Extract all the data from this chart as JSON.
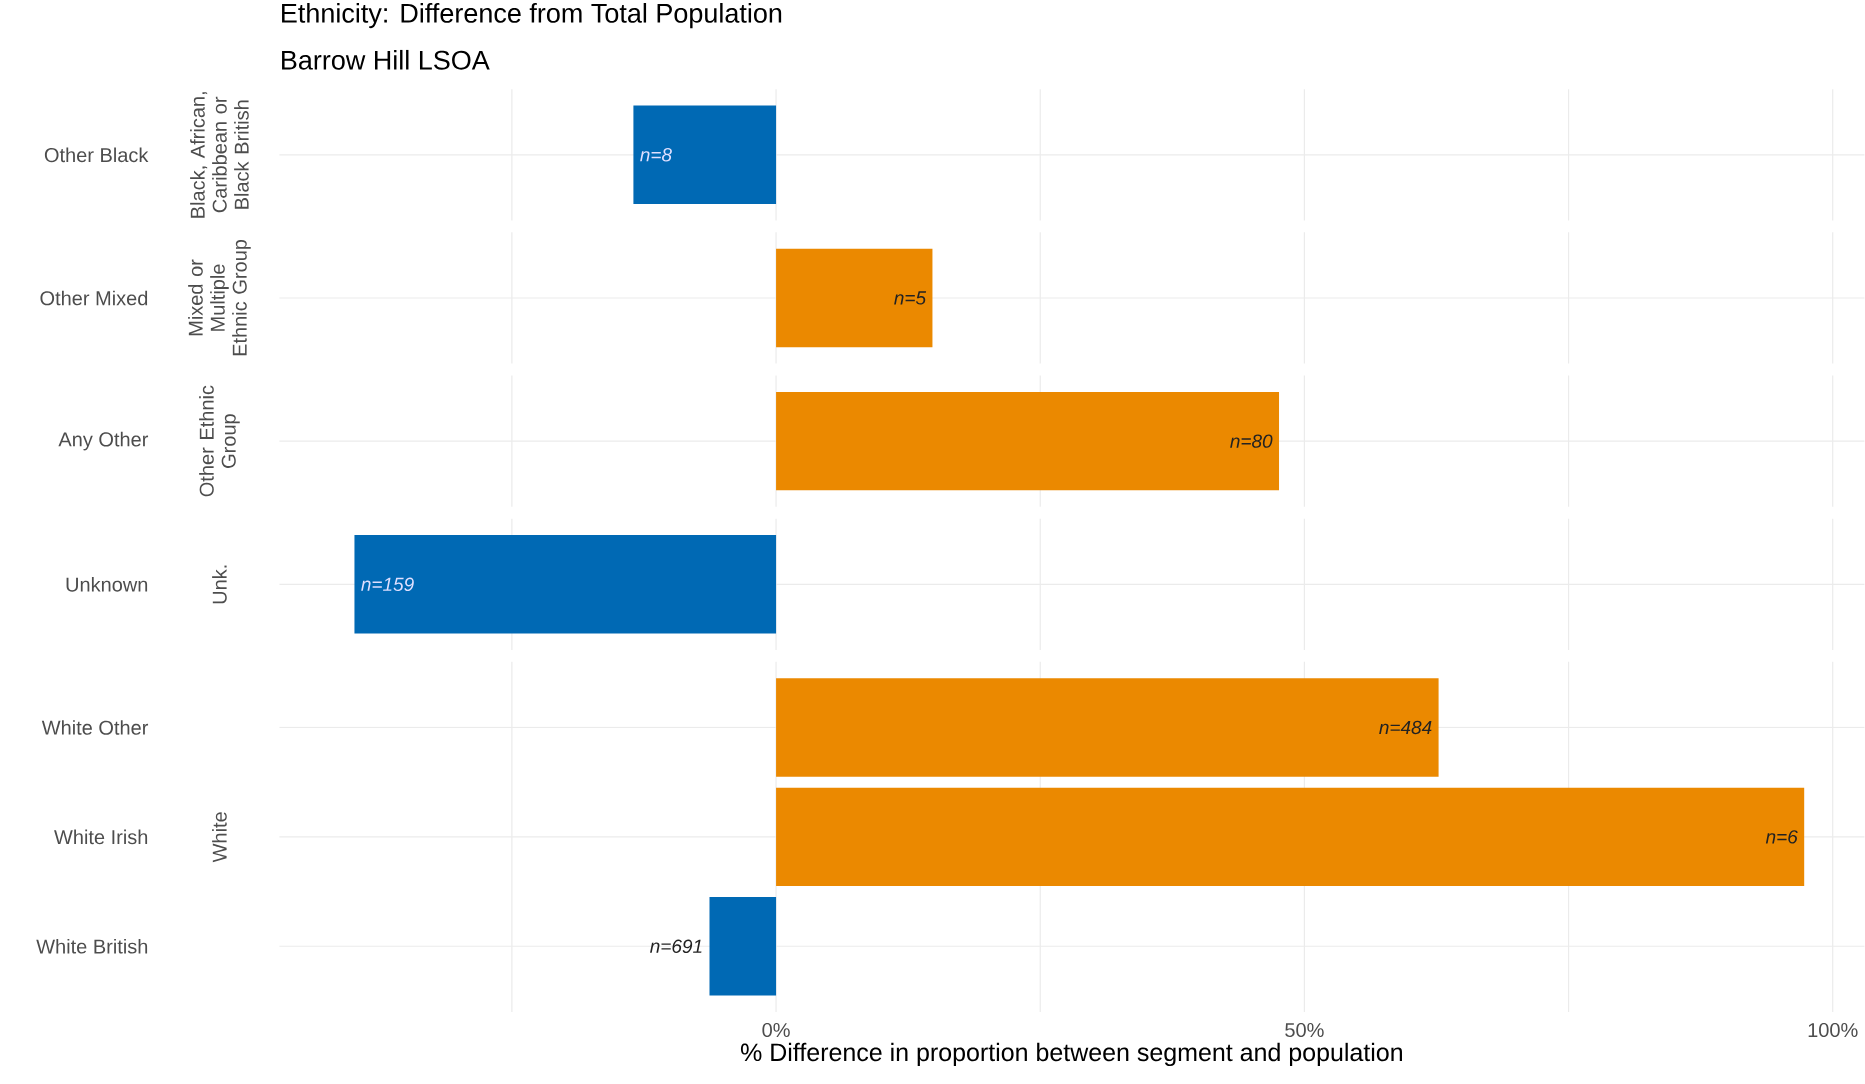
{
  "chart_data": [
    {
      "type": "bar",
      "orientation": "horizontal",
      "title": "Ethnicity: Difference from Total Population",
      "subtitle": "Barrow Hill LSOA",
      "ylabel": "Black, African, Caribbean or Black British",
      "categories": [
        "Other Black"
      ],
      "values": [
        -13.5
      ],
      "colors": [
        "#0069b4"
      ],
      "annotations": [
        {
          "text": "n=8",
          "x": -13.5,
          "y": "Other Black"
        }
      ],
      "xlim": [
        -47,
        103
      ],
      "xticks": [
        {
          "value": -25,
          "label": null
        },
        {
          "value": 0,
          "label": null
        },
        {
          "value": 25,
          "label": null
        },
        {
          "value": 50,
          "label": null
        },
        {
          "value": 75,
          "label": null
        },
        {
          "value": 100,
          "label": null
        }
      ],
      "grid": true,
      "tick_labels": "y"
    },
    {
      "type": "bar",
      "orientation": "horizontal",
      "ylabel": "Mixed or Multiple Ethnic Group",
      "categories": [
        "Other Mixed"
      ],
      "values": [
        14.8
      ],
      "colors": [
        "#eb8900"
      ],
      "annotations": [
        {
          "text": "n=5",
          "x": 14.8,
          "y": "Other Mixed"
        }
      ],
      "xlim": [
        -47,
        103
      ],
      "xticks": [
        {
          "value": -25,
          "label": null
        },
        {
          "value": 0,
          "label": null
        },
        {
          "value": 25,
          "label": null
        },
        {
          "value": 50,
          "label": null
        },
        {
          "value": 75,
          "label": null
        },
        {
          "value": 100,
          "label": null
        }
      ],
      "grid": true,
      "tick_labels": "y"
    },
    {
      "type": "bar",
      "orientation": "horizontal",
      "ylabel": "Other Ethnic Group",
      "categories": [
        "Any Other"
      ],
      "values": [
        47.6
      ],
      "colors": [
        "#eb8900"
      ],
      "annotations": [
        {
          "text": "n=80",
          "x": 47.6,
          "y": "Any Other"
        }
      ],
      "xlim": [
        -47,
        103
      ],
      "xticks": [
        {
          "value": -25,
          "label": null
        },
        {
          "value": 0,
          "label": null
        },
        {
          "value": 25,
          "label": null
        },
        {
          "value": 50,
          "label": null
        },
        {
          "value": 75,
          "label": null
        },
        {
          "value": 100,
          "label": null
        }
      ],
      "grid": true,
      "tick_labels": "y"
    },
    {
      "type": "bar",
      "orientation": "horizontal",
      "ylabel": "Unk.",
      "categories": [
        "Unknown"
      ],
      "values": [
        -39.9
      ],
      "colors": [
        "#0069b4"
      ],
      "annotations": [
        {
          "text": "n=159",
          "x": -39.9,
          "y": "Unknown"
        }
      ],
      "xlim": [
        -47,
        103
      ],
      "xticks": [
        {
          "value": -25,
          "label": null
        },
        {
          "value": 0,
          "label": null
        },
        {
          "value": 25,
          "label": null
        },
        {
          "value": 50,
          "label": null
        },
        {
          "value": 75,
          "label": null
        },
        {
          "value": 100,
          "label": null
        }
      ],
      "grid": true,
      "tick_labels": "y"
    },
    {
      "type": "bar",
      "orientation": "horizontal",
      "ylabel": "White",
      "xlabel": "% Difference in proportion between segment and population",
      "categories": [
        "White Other",
        "White Irish",
        "White British"
      ],
      "values": [
        62.7,
        97.3,
        -6.3
      ],
      "colors": [
        "#eb8900",
        "#eb8900",
        "#0069b4"
      ],
      "annotations": [
        {
          "text": "n=484",
          "x": 62.7,
          "y": "White Other"
        },
        {
          "text": "n=6",
          "x": 97.3,
          "y": "White Irish"
        },
        {
          "text": "n=691",
          "x": -6.3,
          "y": "White British"
        }
      ],
      "xlim": [
        -47,
        103
      ],
      "xticks": [
        {
          "value": -25,
          "label": null
        },
        {
          "value": 0,
          "label": "0%"
        },
        {
          "value": 25,
          "label": null
        },
        {
          "value": 50,
          "label": "50%"
        },
        {
          "value": 75,
          "label": null
        },
        {
          "value": 100,
          "label": "100%"
        }
      ],
      "grid": true
    }
  ]
}
